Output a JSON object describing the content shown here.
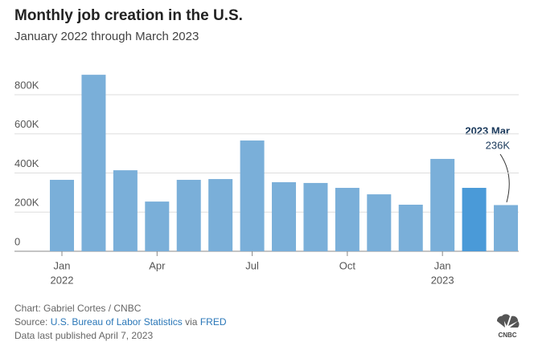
{
  "chart_data": {
    "type": "bar",
    "title": "Monthly job creation in the U.S.",
    "subtitle": "January 2022 through March 2023",
    "categories": [
      [
        "Jan",
        "2022"
      ],
      null,
      null,
      [
        "Apr"
      ],
      null,
      null,
      [
        "Jul"
      ],
      null,
      null,
      [
        "Oct"
      ],
      null,
      null,
      [
        "Jan",
        "2023"
      ],
      null,
      null
    ],
    "values": [
      365000,
      902000,
      414000,
      254000,
      365000,
      369000,
      566000,
      353000,
      349000,
      324000,
      291000,
      238000,
      472000,
      324000,
      236000
    ],
    "value_labels": [
      null,
      null,
      null,
      null,
      null,
      null,
      null,
      null,
      null,
      null,
      null,
      null,
      null,
      null,
      "236K"
    ],
    "colors": [
      "#7aafd9",
      "#7aafd9",
      "#7aafd9",
      "#7aafd9",
      "#7aafd9",
      "#7aafd9",
      "#7aafd9",
      "#7aafd9",
      "#7aafd9",
      "#7aafd9",
      "#7aafd9",
      "#7aafd9",
      "#7aafd9",
      "#4a9ad8",
      "#7aafd9"
    ],
    "annotation": "2023 Mar",
    "ylim": [
      0,
      950000
    ],
    "yticks": [
      {
        "value": 0,
        "label": "0"
      },
      {
        "value": 200000,
        "label": "200K"
      },
      {
        "value": 400000,
        "label": "400K"
      },
      {
        "value": 600000,
        "label": "600K"
      },
      {
        "value": 800000,
        "label": "800K"
      }
    ],
    "grid": true
  },
  "footer": {
    "credit": "Chart: Gabriel Cortes / CNBC",
    "source_prefix": "Source:",
    "source_link1": "U.S. Bureau of Labor Statistics",
    "source_via": "via",
    "source_link2": "FRED",
    "published": "Data last published April 7, 2023",
    "logo": "CNBC"
  }
}
